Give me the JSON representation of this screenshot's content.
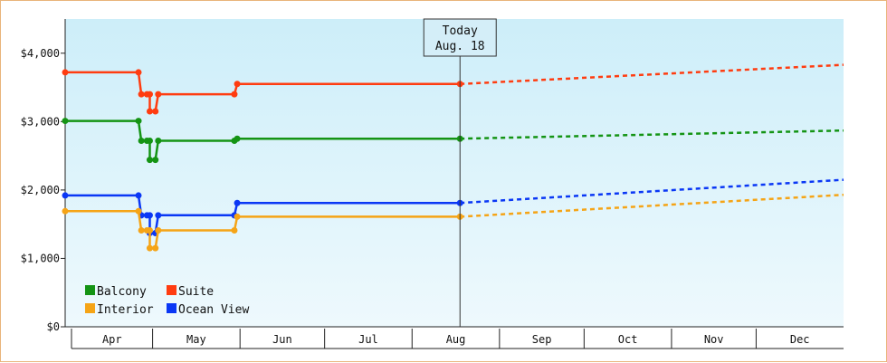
{
  "chart_data": {
    "type": "line",
    "xlabel": "",
    "ylabel": "",
    "ylim": [
      0,
      4500
    ],
    "y_ticks": [
      0,
      1000,
      2000,
      3000,
      4000
    ],
    "y_tick_labels": [
      "$0",
      "$1,000",
      "$2,000",
      "$3,000",
      "$4,000"
    ],
    "x_months": [
      "Apr",
      "May",
      "Jun",
      "Jul",
      "Aug",
      "Sep",
      "Oct",
      "Nov",
      "Dec"
    ],
    "grid": false,
    "background": [
      "#cdeef9",
      "#eef9fd"
    ],
    "legend": {
      "placement": "bottom-left",
      "entries": [
        {
          "label": "Balcony",
          "color": "#149414"
        },
        {
          "label": "Suite",
          "color": "#ff3c10"
        },
        {
          "label": "Interior",
          "color": "#f5a416"
        },
        {
          "label": "Ocean View",
          "color": "#0a37f5"
        }
      ]
    },
    "today": {
      "line1": "Today",
      "line2": "Aug. 18",
      "date": "2016-08-18"
    },
    "x_range": [
      "2016-03-31",
      "2017-01-01"
    ],
    "series": [
      {
        "name": "Suite",
        "color": "#ff3c10",
        "history": [
          [
            "2016-03-31",
            3720
          ],
          [
            "2016-04-26",
            3720
          ],
          [
            "2016-04-27",
            3400
          ],
          [
            "2016-04-29",
            3400
          ],
          [
            "2016-04-30",
            3400
          ],
          [
            "2016-04-30",
            3150
          ],
          [
            "2016-05-02",
            3150
          ],
          [
            "2016-05-03",
            3400
          ],
          [
            "2016-05-30",
            3400
          ],
          [
            "2016-05-31",
            3550
          ],
          [
            "2016-08-18",
            3550
          ]
        ],
        "forecast": [
          [
            "2016-08-18",
            3550
          ],
          [
            "2017-01-01",
            3830
          ]
        ]
      },
      {
        "name": "Balcony",
        "color": "#149414",
        "history": [
          [
            "2016-03-31",
            3010
          ],
          [
            "2016-04-26",
            3010
          ],
          [
            "2016-04-27",
            2720
          ],
          [
            "2016-04-29",
            2720
          ],
          [
            "2016-04-30",
            2720
          ],
          [
            "2016-04-30",
            2440
          ],
          [
            "2016-05-02",
            2440
          ],
          [
            "2016-05-03",
            2720
          ],
          [
            "2016-05-30",
            2720
          ],
          [
            "2016-05-31",
            2750
          ],
          [
            "2016-08-18",
            2750
          ]
        ],
        "forecast": [
          [
            "2016-08-18",
            2750
          ],
          [
            "2017-01-01",
            2870
          ]
        ]
      },
      {
        "name": "Ocean View",
        "color": "#0a37f5",
        "history": [
          [
            "2016-03-31",
            1920
          ],
          [
            "2016-04-26",
            1920
          ],
          [
            "2016-04-27",
            1630
          ],
          [
            "2016-04-29",
            1630
          ],
          [
            "2016-04-30",
            1630
          ],
          [
            "2016-04-30",
            1370
          ],
          [
            "2016-05-02",
            1370
          ],
          [
            "2016-05-03",
            1630
          ],
          [
            "2016-05-30",
            1630
          ],
          [
            "2016-05-31",
            1810
          ],
          [
            "2016-08-18",
            1810
          ]
        ],
        "forecast": [
          [
            "2016-08-18",
            1810
          ],
          [
            "2017-01-01",
            2150
          ]
        ]
      },
      {
        "name": "Interior",
        "color": "#f5a416",
        "history": [
          [
            "2016-03-31",
            1690
          ],
          [
            "2016-04-26",
            1690
          ],
          [
            "2016-04-27",
            1410
          ],
          [
            "2016-04-29",
            1410
          ],
          [
            "2016-04-30",
            1410
          ],
          [
            "2016-04-30",
            1150
          ],
          [
            "2016-05-02",
            1150
          ],
          [
            "2016-05-03",
            1410
          ],
          [
            "2016-05-30",
            1410
          ],
          [
            "2016-05-31",
            1610
          ],
          [
            "2016-08-18",
            1610
          ]
        ],
        "forecast": [
          [
            "2016-08-18",
            1610
          ],
          [
            "2017-01-01",
            1930
          ]
        ]
      }
    ]
  }
}
